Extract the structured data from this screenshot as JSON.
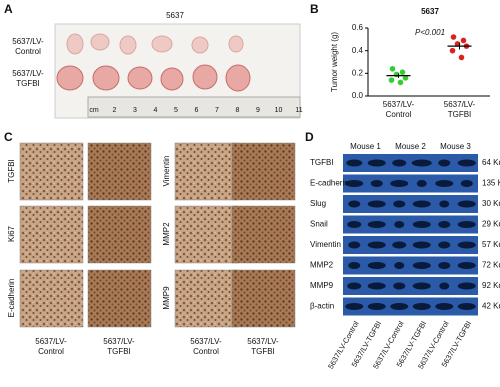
{
  "panel_a": {
    "label": "A",
    "title": "5637",
    "rows": [
      [
        "5637/LV-",
        "Control"
      ],
      [
        "5637/LV-",
        "TGFBI"
      ]
    ],
    "ruler": [
      "cm",
      "2",
      "3",
      "4",
      "5",
      "6",
      "7",
      "8",
      "9",
      "10",
      "11"
    ]
  },
  "chart_data": {
    "label": "B",
    "type": "scatter",
    "title": "5637",
    "y_label": "Tumor weight (g)",
    "annotation": "P<0.001",
    "categories": [
      [
        "5637/LV-",
        "Control"
      ],
      [
        "5637/LV-",
        "TGFBI"
      ]
    ],
    "series": [
      {
        "color": "#33cc33",
        "values": [
          0.24,
          0.21,
          0.19,
          0.16,
          0.14,
          0.12
        ],
        "mean": 0.18,
        "error": 0.02
      },
      {
        "color": "#d62424",
        "values": [
          0.52,
          0.49,
          0.46,
          0.44,
          0.4,
          0.34
        ],
        "mean": 0.44,
        "error": 0.03
      }
    ],
    "ylim": [
      0,
      0.6
    ],
    "yticks": [
      {
        "value": 0,
        "label": "0.0"
      },
      0.2,
      0.4,
      0.6
    ]
  },
  "panel_c": {
    "label": "C",
    "left_rows": [
      "TGFBI",
      "Ki67",
      "E-cadherin"
    ],
    "right_rows": [
      "Vimentin",
      "MMP2",
      "MMP9"
    ],
    "columns": [
      [
        "5637/LV-",
        "Control"
      ],
      [
        "5637/LV-",
        "TGFBI"
      ]
    ]
  },
  "panel_d": {
    "label": "D",
    "mice": [
      "Mouse 1",
      "Mouse 2",
      "Mouse 3"
    ],
    "rows": [
      {
        "protein": "TGFBI",
        "size": "64 Kd"
      },
      {
        "protein": "E-cadherin",
        "size": "135 Kd"
      },
      {
        "protein": "Slug",
        "size": "30 Kd"
      },
      {
        "protein": "Snail",
        "size": "29 Kd"
      },
      {
        "protein": "Vimentin",
        "size": "57 Kd"
      },
      {
        "protein": "MMP2",
        "size": "72 Kd"
      },
      {
        "protein": "MMP9",
        "size": "92 Kd"
      },
      {
        "protein": "β-actin",
        "size": "42 Kd"
      }
    ],
    "lanes": [
      "5637/LV-Control",
      "5637/LV-TGFBI",
      "5637/LV-Control",
      "5637/LV-TGFBI",
      "5637/LV-Control",
      "5637/LV-TGFBI"
    ]
  }
}
